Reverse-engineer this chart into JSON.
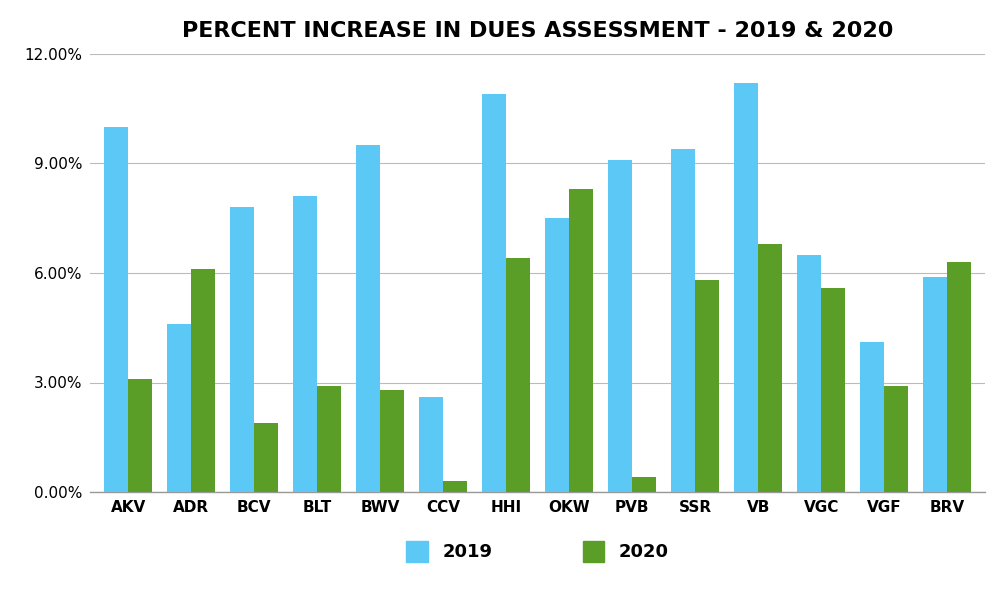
{
  "title": "PERCENT INCREASE IN DUES ASSESSMENT - 2019 & 2020",
  "categories": [
    "AKV",
    "ADR",
    "BCV",
    "BLT",
    "BWV",
    "CCV",
    "HHI",
    "OKW",
    "PVB",
    "SSR",
    "VB",
    "VGC",
    "VGF",
    "BRV"
  ],
  "values_2019": [
    0.1,
    0.046,
    0.078,
    0.081,
    0.095,
    0.026,
    0.109,
    0.075,
    0.091,
    0.094,
    0.112,
    0.065,
    0.041,
    0.059
  ],
  "values_2020": [
    0.031,
    0.061,
    0.019,
    0.029,
    0.028,
    0.003,
    0.064,
    0.083,
    0.004,
    0.058,
    0.068,
    0.056,
    0.029,
    0.063
  ],
  "color_2019": "#5BC8F5",
  "color_2020": "#5A9E28",
  "background_color": "#FFFFFF",
  "ylim": [
    0,
    0.12
  ],
  "yticks": [
    0.0,
    0.03,
    0.06,
    0.09,
    0.12
  ],
  "ytick_labels": [
    "0.00%",
    "3.00%",
    "6.00%",
    "9.00%",
    "12.00%"
  ],
  "legend_2019": "2019",
  "legend_2020": "2020",
  "title_fontsize": 16,
  "tick_fontsize": 11,
  "legend_fontsize": 13,
  "bar_width": 0.38,
  "grid_color": "#BBBBBB"
}
